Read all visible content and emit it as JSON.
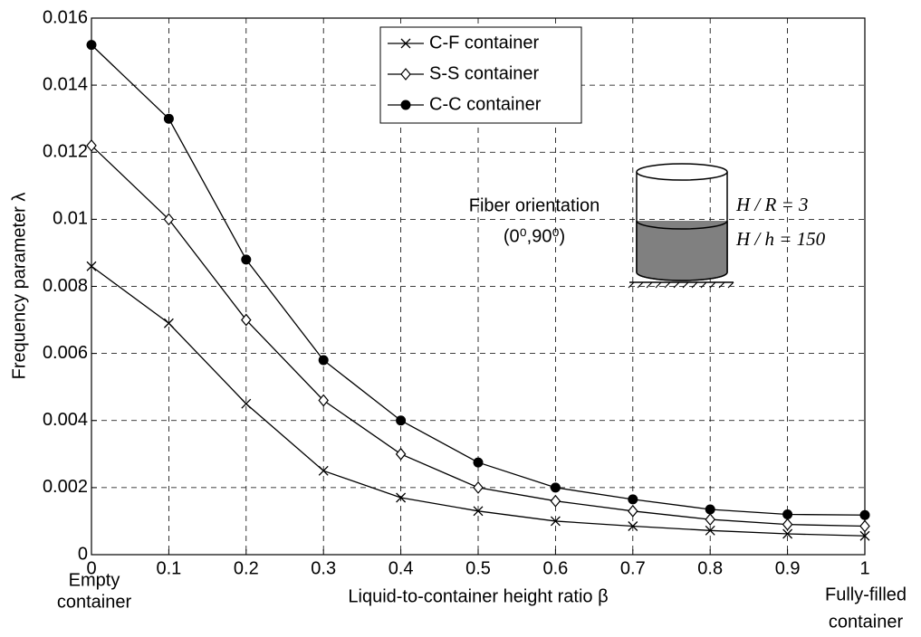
{
  "chart_data": {
    "type": "line",
    "x_label": "Liquid-to-container height ratio β",
    "y_label": "Frequency parameter λ",
    "x": [
      0,
      0.1,
      0.2,
      0.3,
      0.4,
      0.5,
      0.6,
      0.7,
      0.8,
      0.9,
      1
    ],
    "series": [
      {
        "name": "C-F container",
        "color": "#000000",
        "marker": "x",
        "values": [
          0.0086,
          0.0069,
          0.0045,
          0.0025,
          0.0017,
          0.0013,
          0.001,
          0.00085,
          0.00072,
          0.00062,
          0.00056
        ]
      },
      {
        "name": "S-S container",
        "color": "#000000",
        "marker": "diamond",
        "values": [
          0.0122,
          0.01,
          0.007,
          0.0046,
          0.003,
          0.002,
          0.0016,
          0.0013,
          0.00105,
          0.0009,
          0.00085
        ]
      },
      {
        "name": "C-C container",
        "color": "#000000",
        "marker": "circle",
        "values": [
          0.0152,
          0.013,
          0.0088,
          0.0058,
          0.004,
          0.00275,
          0.002,
          0.00165,
          0.00135,
          0.0012,
          0.00118
        ]
      }
    ],
    "xlim": [
      0,
      1
    ],
    "xticks": [
      0,
      0.1,
      0.2,
      0.3,
      0.4,
      0.5,
      0.6,
      0.7,
      0.8,
      0.9,
      1
    ],
    "ylim": [
      0,
      0.016
    ],
    "yticks": [
      0,
      0.002,
      0.004,
      0.006,
      0.008,
      0.01,
      0.012,
      0.014,
      0.016
    ],
    "grid": true,
    "legend": "top-center",
    "annotations": {
      "x_start": [
        "Empty",
        "container"
      ],
      "x_end": [
        "Fully-filled",
        "container"
      ],
      "fiber_title": "Fiber orientation",
      "fiber_value": "(0⁰,90⁰)",
      "ratio_r": "H / R = 3",
      "ratio_h": "H / h = 150"
    }
  }
}
